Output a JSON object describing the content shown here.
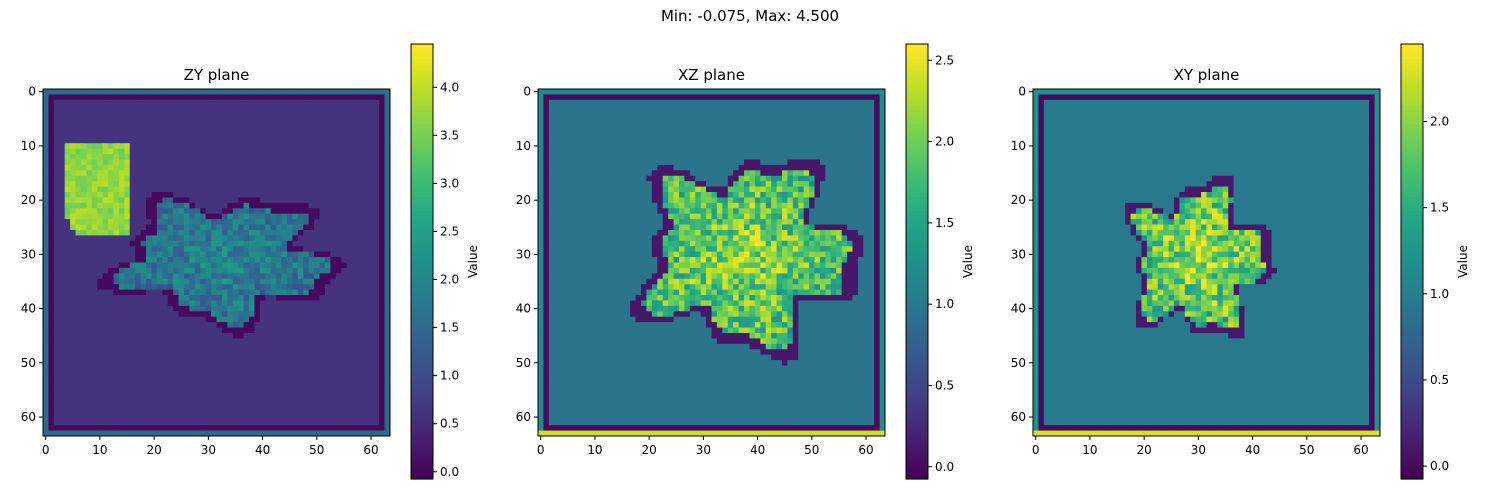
{
  "suptitle": "Min: -0.075, Max: 4.500",
  "chart_data": [
    {
      "type": "heatmap",
      "title": "ZY plane",
      "colorbar_label": "Value",
      "colormap": "viridis",
      "grid_size": [
        64,
        64
      ],
      "xlim": [
        0,
        63
      ],
      "ylim": [
        0,
        63
      ],
      "x_ticks": [
        0,
        10,
        20,
        30,
        40,
        50,
        60
      ],
      "y_ticks": [
        0,
        10,
        20,
        30,
        40,
        50,
        60
      ],
      "clim": [
        -0.075,
        4.45
      ],
      "colorbar_ticks": [
        "0.0",
        "0.5",
        "1.0",
        "1.5",
        "2.0",
        "2.5",
        "3.0",
        "3.5",
        "4.0"
      ],
      "colorbar_tick_values": [
        0.0,
        0.5,
        1.0,
        1.5,
        2.0,
        2.5,
        3.0,
        3.5,
        4.0
      ],
      "field": {
        "background": 0.6,
        "frame_dark": 0.05,
        "frame_edge": 1.5,
        "blob_center": [
          33,
          31
        ],
        "blob_radius": [
          17,
          10
        ],
        "blob_value": 1.6,
        "hot_region": [
          [
            4,
            10
          ],
          [
            15,
            26
          ]
        ],
        "hot_value": 4.0,
        "halo_value": 0.05
      }
    },
    {
      "type": "heatmap",
      "title": "XZ plane",
      "colorbar_label": "Value",
      "colormap": "viridis",
      "grid_size": [
        64,
        64
      ],
      "xlim": [
        0,
        63
      ],
      "ylim": [
        0,
        63
      ],
      "x_ticks": [
        0,
        10,
        20,
        30,
        40,
        50,
        60
      ],
      "y_ticks": [
        0,
        10,
        20,
        30,
        40,
        50,
        60
      ],
      "clim": [
        -0.075,
        2.6
      ],
      "colorbar_ticks": [
        "0.0",
        "0.5",
        "1.0",
        "1.5",
        "2.0",
        "2.5"
      ],
      "colorbar_tick_values": [
        0.0,
        0.5,
        1.0,
        1.5,
        2.0,
        2.5
      ],
      "field": {
        "background": 0.95,
        "frame_dark": 0.0,
        "frame_edge": 1.2,
        "bottom_edge": 2.4,
        "blob_center": [
          38,
          30
        ],
        "blob_radius": [
          17,
          15
        ],
        "blob_value": 1.75,
        "halo_value": 0.1
      }
    },
    {
      "type": "heatmap",
      "title": "XY plane",
      "colorbar_label": "Value",
      "colormap": "viridis",
      "grid_size": [
        64,
        64
      ],
      "xlim": [
        0,
        63
      ],
      "ylim": [
        0,
        63
      ],
      "x_ticks": [
        0,
        10,
        20,
        30,
        40,
        50,
        60
      ],
      "y_ticks": [
        0,
        10,
        20,
        30,
        40,
        50,
        60
      ],
      "clim": [
        -0.075,
        2.45
      ],
      "colorbar_ticks": [
        "0.0",
        "0.5",
        "1.0",
        "1.5",
        "2.0"
      ],
      "colorbar_tick_values": [
        0.0,
        0.5,
        1.0,
        1.5,
        2.0
      ],
      "field": {
        "background": 0.95,
        "frame_dark": 0.0,
        "frame_edge": 1.2,
        "bottom_edge": 2.3,
        "blob_center": [
          30,
          31
        ],
        "blob_radius": [
          11,
          12
        ],
        "blob_value": 1.7,
        "halo_value": 0.1
      }
    }
  ]
}
